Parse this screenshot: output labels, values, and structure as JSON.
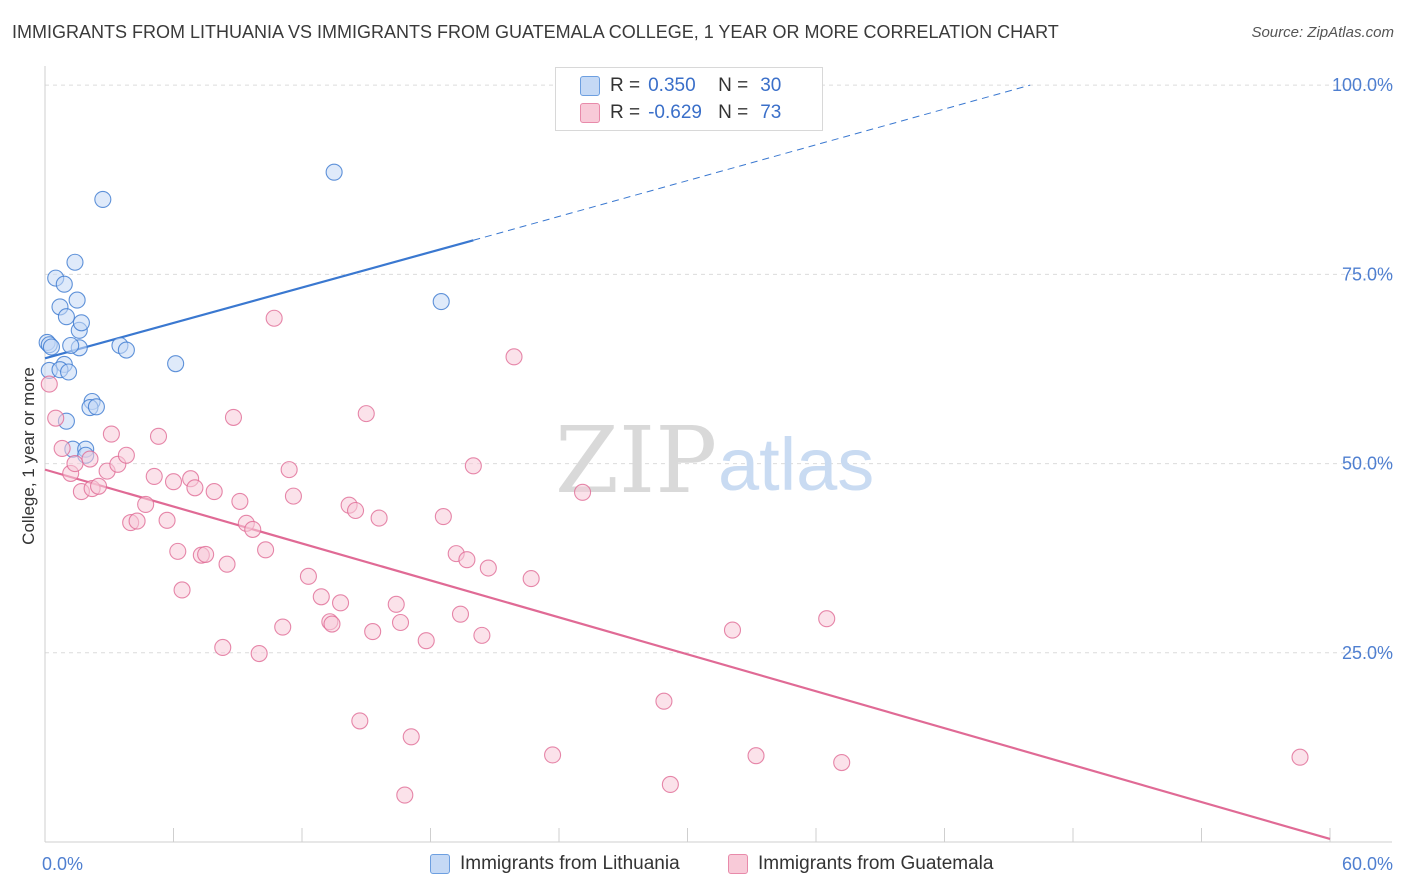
{
  "title": "IMMIGRANTS FROM LITHUANIA VS IMMIGRANTS FROM GUATEMALA COLLEGE, 1 YEAR OR MORE CORRELATION CHART",
  "source": "Source: ZipAtlas.com",
  "watermark": {
    "zip": "ZIP",
    "atlas": "atlas"
  },
  "legend": {
    "rows": [
      {
        "r_label": "R =",
        "r_value": "0.350",
        "n_label": "N =",
        "n_value": "30",
        "color": "#6d9fe0",
        "fill": "#c5d9f5"
      },
      {
        "r_label": "R =",
        "r_value": "-0.629",
        "n_label": "N =",
        "n_value": "73",
        "color": "#e88aaa",
        "fill": "#f8cad8"
      }
    ]
  },
  "bottom_legend": [
    {
      "label": "Immigrants from Lithuania",
      "color": "#6d9fe0",
      "fill": "#c5d9f5"
    },
    {
      "label": "Immigrants from Guatemala",
      "color": "#e88aaa",
      "fill": "#f8cad8"
    }
  ],
  "chart_data": {
    "type": "scatter",
    "title": "IMMIGRANTS FROM LITHUANIA VS IMMIGRANTS FROM GUATEMALA COLLEGE, 1 YEAR OR MORE CORRELATION CHART",
    "xlabel": "",
    "ylabel": "College, 1 year or more",
    "xlim": [
      0,
      60
    ],
    "ylim": [
      0,
      102
    ],
    "x_tick_labels": [
      "0.0%",
      "60.0%"
    ],
    "y_ticks": [
      25,
      50,
      75,
      100
    ],
    "y_tick_labels": [
      "25.0%",
      "50.0%",
      "75.0%",
      "100.0%"
    ],
    "grid": true,
    "series": [
      {
        "name": "Immigrants from Lithuania",
        "color": "#3a78d0",
        "fill": "#c5d9f5",
        "points": [
          [
            0.1,
            66.0
          ],
          [
            0.2,
            65.7
          ],
          [
            0.3,
            65.4
          ],
          [
            0.2,
            62.3
          ],
          [
            0.5,
            74.5
          ],
          [
            0.7,
            70.7
          ],
          [
            0.9,
            73.7
          ],
          [
            1.0,
            69.4
          ],
          [
            1.4,
            76.6
          ],
          [
            1.5,
            71.6
          ],
          [
            1.6,
            67.6
          ],
          [
            1.7,
            68.6
          ],
          [
            1.6,
            65.3
          ],
          [
            1.2,
            65.6
          ],
          [
            0.9,
            63.1
          ],
          [
            0.7,
            62.4
          ],
          [
            1.0,
            55.6
          ],
          [
            1.3,
            51.9
          ],
          [
            1.9,
            51.9
          ],
          [
            1.9,
            51.1
          ],
          [
            2.2,
            58.2
          ],
          [
            2.1,
            57.4
          ],
          [
            2.4,
            57.5
          ],
          [
            2.7,
            84.9
          ],
          [
            3.5,
            65.6
          ],
          [
            3.8,
            65.0
          ],
          [
            6.1,
            63.2
          ],
          [
            13.5,
            88.5
          ],
          [
            18.5,
            71.4
          ],
          [
            1.1,
            62.1
          ]
        ],
        "trend": {
          "x": [
            0,
            20,
            46
          ],
          "y": [
            63.9,
            79.5,
            100.0
          ],
          "solid_until_x": 20
        }
      },
      {
        "name": "Immigrants from Guatemala",
        "color": "#e06a95",
        "fill": "#f8cad8",
        "points": [
          [
            0.2,
            60.5
          ],
          [
            0.5,
            56.0
          ],
          [
            0.8,
            52.0
          ],
          [
            1.2,
            48.7
          ],
          [
            1.4,
            50.0
          ],
          [
            1.7,
            46.3
          ],
          [
            2.1,
            50.6
          ],
          [
            2.2,
            46.7
          ],
          [
            2.5,
            47.0
          ],
          [
            2.9,
            49.0
          ],
          [
            3.1,
            53.9
          ],
          [
            3.4,
            49.9
          ],
          [
            3.8,
            51.1
          ],
          [
            4.0,
            42.2
          ],
          [
            4.3,
            42.4
          ],
          [
            4.7,
            44.6
          ],
          [
            5.1,
            48.3
          ],
          [
            5.3,
            53.6
          ],
          [
            5.7,
            42.5
          ],
          [
            6.0,
            47.6
          ],
          [
            6.2,
            38.4
          ],
          [
            6.4,
            33.3
          ],
          [
            6.8,
            48.0
          ],
          [
            7.0,
            46.8
          ],
          [
            7.3,
            37.9
          ],
          [
            7.5,
            38.0
          ],
          [
            7.9,
            46.3
          ],
          [
            8.3,
            25.7
          ],
          [
            8.5,
            36.7
          ],
          [
            8.8,
            56.1
          ],
          [
            9.1,
            45.0
          ],
          [
            9.4,
            42.1
          ],
          [
            9.7,
            41.3
          ],
          [
            10.0,
            24.9
          ],
          [
            10.3,
            38.6
          ],
          [
            10.7,
            69.2
          ],
          [
            11.1,
            28.4
          ],
          [
            11.4,
            49.2
          ],
          [
            11.6,
            45.7
          ],
          [
            12.3,
            35.1
          ],
          [
            12.9,
            32.4
          ],
          [
            13.3,
            29.1
          ],
          [
            13.4,
            28.8
          ],
          [
            13.8,
            31.6
          ],
          [
            14.2,
            44.5
          ],
          [
            14.5,
            43.8
          ],
          [
            14.7,
            16.0
          ],
          [
            15.0,
            56.6
          ],
          [
            15.3,
            27.8
          ],
          [
            15.6,
            42.8
          ],
          [
            16.4,
            31.4
          ],
          [
            16.6,
            29.0
          ],
          [
            16.8,
            6.2
          ],
          [
            17.1,
            13.9
          ],
          [
            17.8,
            26.6
          ],
          [
            18.6,
            43.0
          ],
          [
            19.2,
            38.1
          ],
          [
            19.4,
            30.1
          ],
          [
            19.7,
            37.3
          ],
          [
            20.0,
            49.7
          ],
          [
            20.4,
            27.3
          ],
          [
            20.7,
            36.2
          ],
          [
            21.9,
            64.1
          ],
          [
            22.7,
            34.8
          ],
          [
            23.7,
            11.5
          ],
          [
            25.1,
            46.2
          ],
          [
            28.9,
            18.6
          ],
          [
            29.2,
            7.6
          ],
          [
            32.1,
            28.0
          ],
          [
            33.2,
            11.4
          ],
          [
            36.5,
            29.5
          ],
          [
            37.2,
            10.5
          ],
          [
            58.6,
            11.2
          ]
        ],
        "trend": {
          "x": [
            0,
            60
          ],
          "y": [
            49.2,
            0.4
          ],
          "solid_until_x": 60
        }
      }
    ]
  }
}
